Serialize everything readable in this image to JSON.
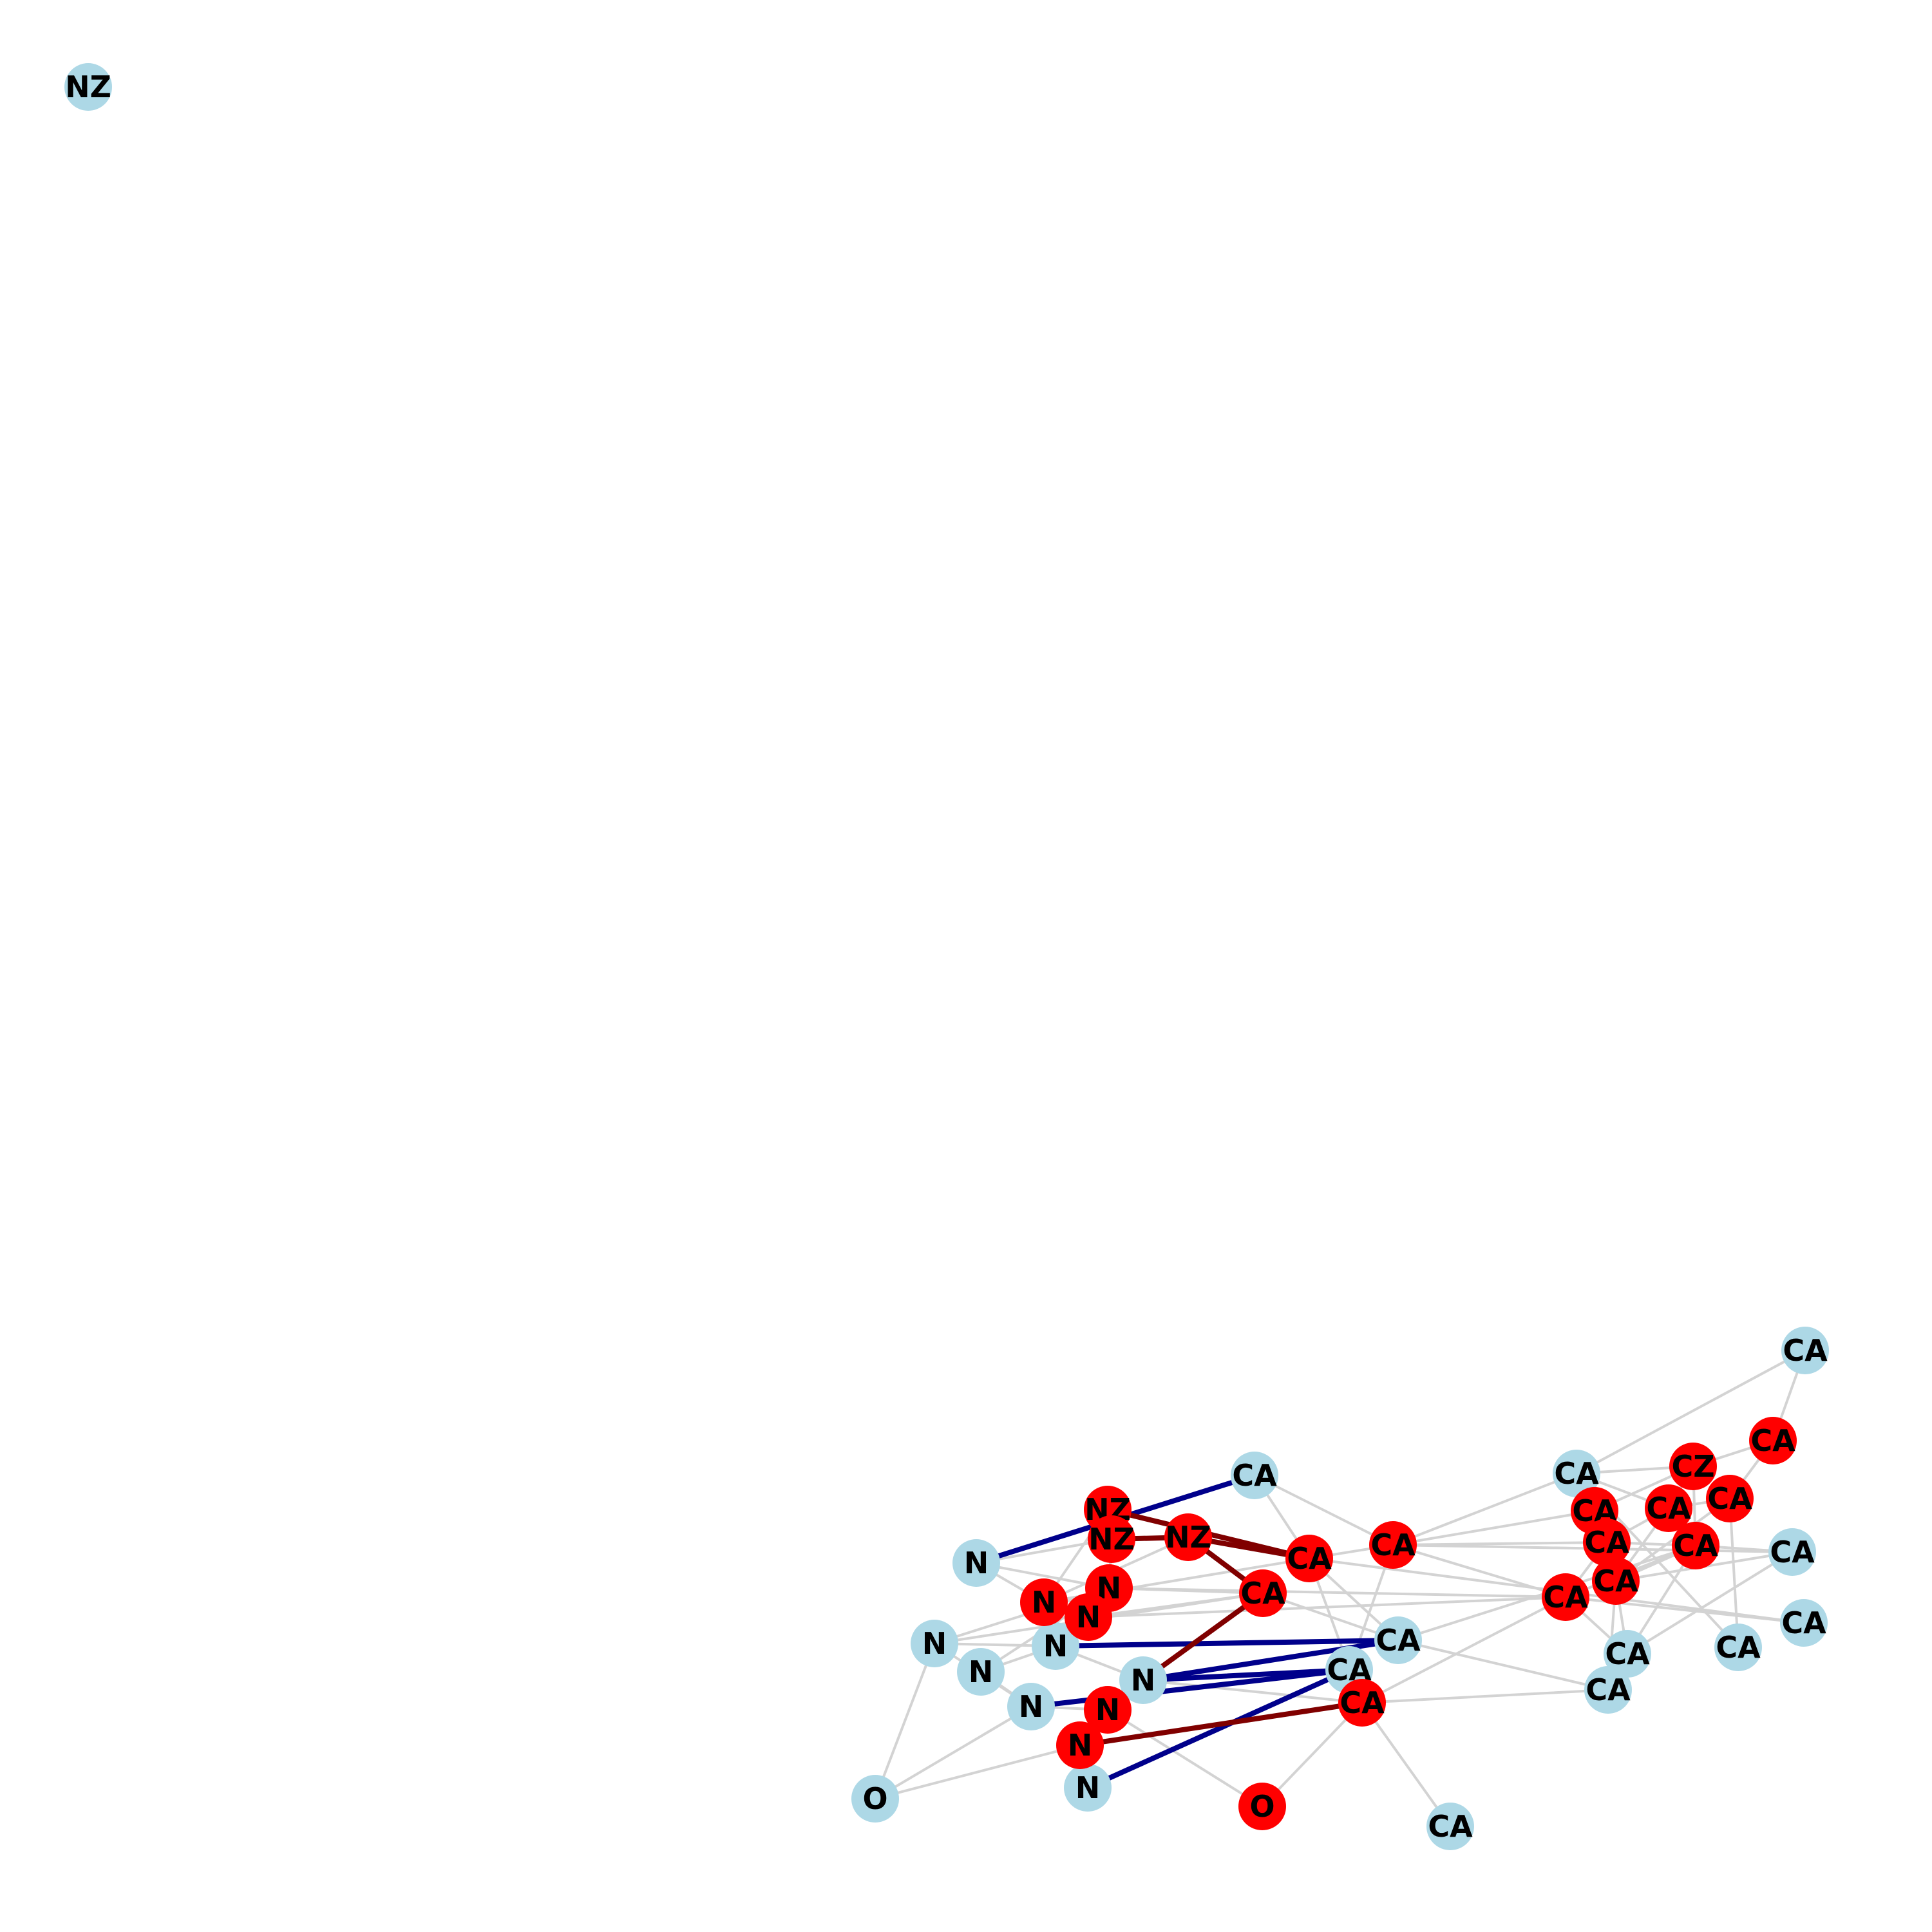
{
  "colors": {
    "node_default": "#add8e6",
    "node_highlight": "#ff0000",
    "edge_default": "#d3d3d3",
    "edge_red_path": "#800000",
    "edge_blue_path": "#00008b",
    "label": "#000000",
    "background": "#ffffff"
  },
  "nodes": [
    {
      "id": "nz_iso",
      "label": "NZ",
      "group": "default"
    },
    {
      "id": "ca_r1",
      "label": "CA",
      "group": "default"
    },
    {
      "id": "ca_top",
      "label": "CA",
      "group": "default"
    },
    {
      "id": "ca_rt",
      "label": "CA",
      "group": "default"
    },
    {
      "id": "ca_r2",
      "label": "CA",
      "group": "default"
    },
    {
      "id": "ca_r3",
      "label": "CA",
      "group": "default"
    },
    {
      "id": "ca_r4",
      "label": "CA",
      "group": "default"
    },
    {
      "id": "ca_r5",
      "label": "CA",
      "group": "default"
    },
    {
      "id": "ca_r6",
      "label": "CA",
      "group": "default"
    },
    {
      "id": "ca_mid",
      "label": "CA",
      "group": "default"
    },
    {
      "id": "ca_mid2",
      "label": "CA",
      "group": "default"
    },
    {
      "id": "ca_bot",
      "label": "CA",
      "group": "default"
    },
    {
      "id": "n_l1",
      "label": "N",
      "group": "default"
    },
    {
      "id": "n_l2",
      "label": "N",
      "group": "default"
    },
    {
      "id": "n_l3",
      "label": "N",
      "group": "default"
    },
    {
      "id": "n_l4",
      "label": "N",
      "group": "default"
    },
    {
      "id": "n_l5",
      "label": "N",
      "group": "default"
    },
    {
      "id": "n_l6",
      "label": "N",
      "group": "default"
    },
    {
      "id": "n_l7",
      "label": "N",
      "group": "default"
    },
    {
      "id": "o_left",
      "label": "O",
      "group": "default"
    },
    {
      "id": "nz_r1",
      "label": "NZ",
      "group": "highlight"
    },
    {
      "id": "nz_r2",
      "label": "NZ",
      "group": "highlight"
    },
    {
      "id": "nz_r3",
      "label": "NZ",
      "group": "highlight"
    },
    {
      "id": "ca_rA",
      "label": "CA",
      "group": "highlight"
    },
    {
      "id": "ca_rB",
      "label": "CA",
      "group": "highlight"
    },
    {
      "id": "ca_rC",
      "label": "CA",
      "group": "highlight"
    },
    {
      "id": "ca_rD",
      "label": "CA",
      "group": "highlight"
    },
    {
      "id": "ca_rE",
      "label": "CA",
      "group": "highlight"
    },
    {
      "id": "ca_rF",
      "label": "CA",
      "group": "highlight"
    },
    {
      "id": "ca_rG",
      "label": "CA",
      "group": "highlight"
    },
    {
      "id": "ca_rH",
      "label": "CA",
      "group": "highlight"
    },
    {
      "id": "ca_rI",
      "label": "CA",
      "group": "highlight"
    },
    {
      "id": "ca_rJ",
      "label": "CA",
      "group": "highlight"
    },
    {
      "id": "ca_rK",
      "label": "CA",
      "group": "highlight"
    },
    {
      "id": "ca_rL",
      "label": "CA",
      "group": "highlight"
    },
    {
      "id": "cz_r",
      "label": "CZ",
      "group": "highlight"
    },
    {
      "id": "n_r1",
      "label": "N",
      "group": "highlight"
    },
    {
      "id": "n_r2",
      "label": "N",
      "group": "highlight"
    },
    {
      "id": "n_r3",
      "label": "N",
      "group": "highlight"
    },
    {
      "id": "n_r4",
      "label": "N",
      "group": "highlight"
    },
    {
      "id": "n_r5",
      "label": "N",
      "group": "highlight"
    },
    {
      "id": "o_red",
      "label": "O",
      "group": "highlight"
    }
  ],
  "edges": [
    {
      "from": "n_l1",
      "to": "ca_top",
      "kind": "blue"
    },
    {
      "from": "n_l3",
      "to": "ca_mid",
      "kind": "blue"
    },
    {
      "from": "n_l5",
      "to": "ca_mid",
      "kind": "blue"
    },
    {
      "from": "n_l5",
      "to": "ca_mid2",
      "kind": "blue"
    },
    {
      "from": "n_l6",
      "to": "ca_mid2",
      "kind": "blue"
    },
    {
      "from": "n_l7",
      "to": "ca_mid2",
      "kind": "blue"
    },
    {
      "from": "nz_r1",
      "to": "ca_rA",
      "kind": "red"
    },
    {
      "from": "nz_r2",
      "to": "nz_r3",
      "kind": "red"
    },
    {
      "from": "nz_r3",
      "to": "ca_rA",
      "kind": "red"
    },
    {
      "from": "nz_r3",
      "to": "ca_rC",
      "kind": "red"
    },
    {
      "from": "ca_rC",
      "to": "n_l5",
      "kind": "red"
    },
    {
      "from": "n_r5",
      "to": "ca_rD",
      "kind": "red"
    },
    {
      "from": "n_l1",
      "to": "n_r1",
      "kind": "default"
    },
    {
      "from": "n_l1",
      "to": "n_r3",
      "kind": "default"
    },
    {
      "from": "n_l1",
      "to": "nz_r2",
      "kind": "default"
    },
    {
      "from": "n_l2",
      "to": "n_r1",
      "kind": "default"
    },
    {
      "from": "n_l2",
      "to": "n_l3",
      "kind": "default"
    },
    {
      "from": "n_l2",
      "to": "n_l6",
      "kind": "default"
    },
    {
      "from": "n_l4",
      "to": "n_r1",
      "kind": "default"
    },
    {
      "from": "n_l4",
      "to": "n_l3",
      "kind": "default"
    },
    {
      "from": "n_l4",
      "to": "n_l6",
      "kind": "default"
    },
    {
      "from": "n_l3",
      "to": "n_r2",
      "kind": "default"
    },
    {
      "from": "n_l3",
      "to": "n_l5",
      "kind": "default"
    },
    {
      "from": "n_l6",
      "to": "n_r4",
      "kind": "default"
    },
    {
      "from": "n_l6",
      "to": "o_left",
      "kind": "default"
    },
    {
      "from": "n_r5",
      "to": "o_left",
      "kind": "default"
    },
    {
      "from": "n_l2",
      "to": "o_left",
      "kind": "default"
    },
    {
      "from": "n_r4",
      "to": "o_red",
      "kind": "default"
    },
    {
      "from": "o_red",
      "to": "ca_rD",
      "kind": "default"
    },
    {
      "from": "ca_rD",
      "to": "ca_bot",
      "kind": "default"
    },
    {
      "from": "ca_rD",
      "to": "ca_rE",
      "kind": "default"
    },
    {
      "from": "ca_rD",
      "to": "ca_r6",
      "kind": "default"
    },
    {
      "from": "n_l5",
      "to": "ca_rD",
      "kind": "default"
    },
    {
      "from": "n_r1",
      "to": "ca_rC",
      "kind": "default"
    },
    {
      "from": "n_r2",
      "to": "ca_rC",
      "kind": "default"
    },
    {
      "from": "n_r3",
      "to": "ca_rA",
      "kind": "default"
    },
    {
      "from": "n_r3",
      "to": "nz_r3",
      "kind": "default"
    },
    {
      "from": "n_r1",
      "to": "ca_rE",
      "kind": "default"
    },
    {
      "from": "n_r2",
      "to": "ca_rE",
      "kind": "default"
    },
    {
      "from": "nz_r1",
      "to": "n_r3",
      "kind": "default"
    },
    {
      "from": "nz_r2",
      "to": "n_r1",
      "kind": "default"
    },
    {
      "from": "ca_top",
      "to": "ca_rA",
      "kind": "default"
    },
    {
      "from": "ca_top",
      "to": "ca_rB",
      "kind": "default"
    },
    {
      "from": "ca_rA",
      "to": "ca_rB",
      "kind": "default"
    },
    {
      "from": "ca_rA",
      "to": "ca_mid",
      "kind": "default"
    },
    {
      "from": "ca_rA",
      "to": "ca_rD",
      "kind": "default"
    },
    {
      "from": "ca_rC",
      "to": "ca_mid",
      "kind": "default"
    },
    {
      "from": "ca_rB",
      "to": "ca_r1",
      "kind": "default"
    },
    {
      "from": "ca_rB",
      "to": "ca_rF",
      "kind": "default"
    },
    {
      "from": "ca_rB",
      "to": "ca_rG",
      "kind": "default"
    },
    {
      "from": "ca_rB",
      "to": "ca_rE",
      "kind": "default"
    },
    {
      "from": "ca_rB",
      "to": "ca_mid2",
      "kind": "default"
    },
    {
      "from": "ca_rB",
      "to": "ca_r2",
      "kind": "default"
    },
    {
      "from": "ca_rA",
      "to": "ca_r3",
      "kind": "default"
    },
    {
      "from": "ca_r1",
      "to": "ca_rt",
      "kind": "default"
    },
    {
      "from": "ca_r1",
      "to": "cz_r",
      "kind": "default"
    },
    {
      "from": "ca_r1",
      "to": "ca_rF",
      "kind": "default"
    },
    {
      "from": "ca_r1",
      "to": "ca_rH",
      "kind": "default"
    },
    {
      "from": "ca_r1",
      "to": "ca_r4",
      "kind": "default"
    },
    {
      "from": "ca_rt",
      "to": "ca_rL",
      "kind": "default"
    },
    {
      "from": "ca_rL",
      "to": "ca_rK",
      "kind": "default"
    },
    {
      "from": "ca_rL",
      "to": "cz_r",
      "kind": "default"
    },
    {
      "from": "ca_rK",
      "to": "ca_rH",
      "kind": "default"
    },
    {
      "from": "ca_rK",
      "to": "ca_rJ",
      "kind": "default"
    },
    {
      "from": "ca_rK",
      "to": "ca_r4",
      "kind": "default"
    },
    {
      "from": "cz_r",
      "to": "ca_rH",
      "kind": "default"
    },
    {
      "from": "cz_r",
      "to": "ca_rF",
      "kind": "default"
    },
    {
      "from": "cz_r",
      "to": "ca_rI",
      "kind": "default"
    },
    {
      "from": "ca_rF",
      "to": "ca_rG",
      "kind": "default"
    },
    {
      "from": "ca_rG",
      "to": "ca_rH",
      "kind": "default"
    },
    {
      "from": "ca_rG",
      "to": "ca_rI",
      "kind": "default"
    },
    {
      "from": "ca_rG",
      "to": "ca_rE",
      "kind": "default"
    },
    {
      "from": "ca_rH",
      "to": "ca_rI",
      "kind": "default"
    },
    {
      "from": "ca_rH",
      "to": "ca_rJ",
      "kind": "default"
    },
    {
      "from": "ca_rI",
      "to": "ca_rJ",
      "kind": "default"
    },
    {
      "from": "ca_rI",
      "to": "ca_r5",
      "kind": "default"
    },
    {
      "from": "ca_rI",
      "to": "ca_r2",
      "kind": "default"
    },
    {
      "from": "ca_rJ",
      "to": "ca_r2",
      "kind": "default"
    },
    {
      "from": "ca_rJ",
      "to": "ca_r5",
      "kind": "default"
    },
    {
      "from": "ca_rJ",
      "to": "ca_r6",
      "kind": "default"
    },
    {
      "from": "ca_rE",
      "to": "ca_r5",
      "kind": "default"
    },
    {
      "from": "ca_rE",
      "to": "ca_rI",
      "kind": "default"
    },
    {
      "from": "ca_mid",
      "to": "ca_r6",
      "kind": "default"
    },
    {
      "from": "ca_r6",
      "to": "ca_r5",
      "kind": "default"
    },
    {
      "from": "ca_r5",
      "to": "ca_r2",
      "kind": "default"
    },
    {
      "from": "ca_mid",
      "to": "ca_rI",
      "kind": "default"
    },
    {
      "from": "ca_r3",
      "to": "ca_rE",
      "kind": "default"
    },
    {
      "from": "nz_r1",
      "to": "nz_r2",
      "kind": "default"
    },
    {
      "from": "ca_rC",
      "to": "n_l2",
      "kind": "default"
    }
  ]
}
